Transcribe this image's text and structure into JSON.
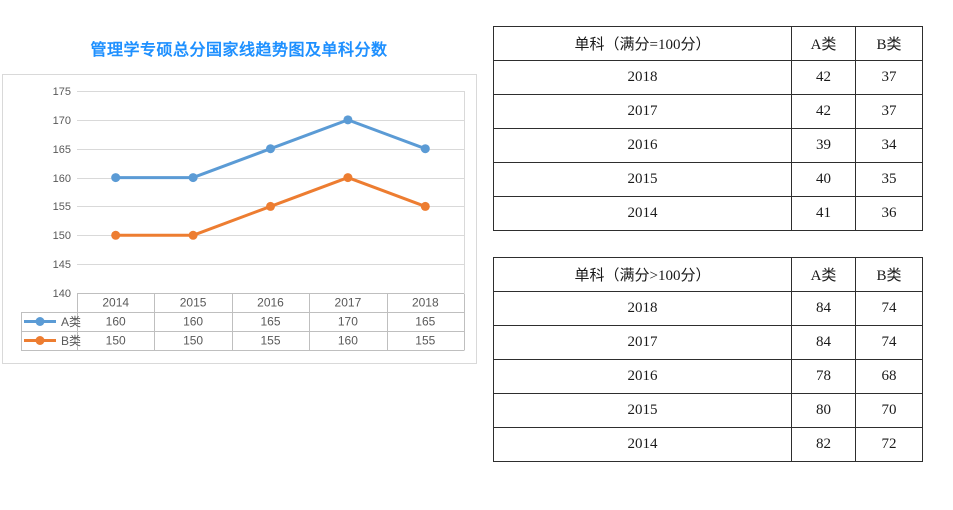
{
  "colors": {
    "title": "#1E90FF",
    "axis-text": "#595959",
    "gridline": "#D9D9D9",
    "chart-table-border": "#BFBFBF",
    "box-border": "#D9D9D9",
    "score-border": "#2E2E2E",
    "series-a": "#5B9BD5",
    "series-b": "#ED7D31"
  },
  "chart": {
    "title": "管理学专硕总分国家线趋势图及单科分数"
  },
  "chart_data": [
    {
      "type": "line",
      "title": "管理学专硕总分国家线趋势图及单科分数",
      "categories": [
        "2014",
        "2015",
        "2016",
        "2017",
        "2018"
      ],
      "series": [
        {
          "name": "A类",
          "color": "#5B9BD5",
          "values": [
            160,
            160,
            165,
            170,
            165
          ]
        },
        {
          "name": "B类",
          "color": "#ED7D31",
          "values": [
            150,
            150,
            155,
            160,
            155
          ]
        }
      ],
      "ylim": [
        140,
        175
      ],
      "yticks": [
        140,
        145,
        150,
        155,
        160,
        165,
        170,
        175
      ],
      "grid": true,
      "marker": "circle",
      "legend_position": "data-table-left",
      "data_table_shown": true
    },
    {
      "type": "table",
      "title": "单科（满分=100分）",
      "columns": [
        "A类",
        "B类"
      ],
      "rows": [
        [
          "2018",
          "42",
          "37"
        ],
        [
          "2017",
          "42",
          "37"
        ],
        [
          "2016",
          "39",
          "34"
        ],
        [
          "2015",
          "40",
          "35"
        ],
        [
          "2014",
          "41",
          "36"
        ]
      ]
    },
    {
      "type": "table",
      "title": "单科（满分>100分）",
      "columns": [
        "A类",
        "B类"
      ],
      "rows": [
        [
          "2018",
          "84",
          "74"
        ],
        [
          "2017",
          "84",
          "74"
        ],
        [
          "2016",
          "78",
          "68"
        ],
        [
          "2015",
          "80",
          "70"
        ],
        [
          "2014",
          "82",
          "72"
        ]
      ]
    }
  ]
}
